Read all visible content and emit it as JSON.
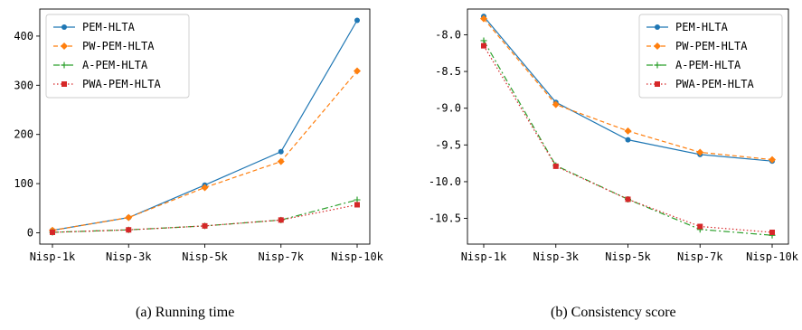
{
  "chart_data": [
    {
      "type": "line",
      "title": "",
      "caption": "(a) Running time",
      "xlabel": "",
      "ylabel": "",
      "categories": [
        "Nisp-1k",
        "Nisp-3k",
        "Nisp-5k",
        "Nisp-7k",
        "Nisp-10k"
      ],
      "ylim": [
        -23,
        455
      ],
      "yticks": [
        0,
        100,
        200,
        300,
        400
      ],
      "legend_position": "top-left",
      "grid": false,
      "series": [
        {
          "name": "PEM-HLTA",
          "color": "#1f77b4",
          "marker": "circle",
          "dash": "solid",
          "values": [
            5,
            31,
            97,
            165,
            432
          ]
        },
        {
          "name": "PW-PEM-HLTA",
          "color": "#ff7f0e",
          "marker": "diamond",
          "dash": "dashed",
          "values": [
            5,
            31,
            92,
            145,
            329
          ]
        },
        {
          "name": "A-PEM-HLTA",
          "color": "#2ca02c",
          "marker": "plus",
          "dash": "dashdot",
          "values": [
            1,
            6,
            14,
            26,
            67
          ]
        },
        {
          "name": "PWA-PEM-HLTA",
          "color": "#d62728",
          "marker": "square",
          "dash": "dotted",
          "values": [
            1,
            6,
            14,
            26,
            57
          ]
        }
      ]
    },
    {
      "type": "line",
      "title": "",
      "caption": "(b) Consistency score",
      "xlabel": "",
      "ylabel": "",
      "categories": [
        "Nisp-1k",
        "Nisp-3k",
        "Nisp-5k",
        "Nisp-7k",
        "Nisp-10k"
      ],
      "ylim": [
        -10.85,
        -7.65
      ],
      "yticks": [
        -8.0,
        -8.5,
        -9.0,
        -9.5,
        -10.0,
        -10.5
      ],
      "ytick_labels": [
        "-8.0",
        "-8.5",
        "-9.0",
        "-9.5",
        "-10.0",
        "-10.5"
      ],
      "legend_position": "top-right",
      "grid": false,
      "series": [
        {
          "name": "PEM-HLTA",
          "color": "#1f77b4",
          "marker": "circle",
          "dash": "solid",
          "values": [
            -7.75,
            -8.92,
            -9.43,
            -9.63,
            -9.72
          ]
        },
        {
          "name": "PW-PEM-HLTA",
          "color": "#ff7f0e",
          "marker": "diamond",
          "dash": "dashed",
          "values": [
            -7.78,
            -8.95,
            -9.31,
            -9.6,
            -9.7
          ]
        },
        {
          "name": "A-PEM-HLTA",
          "color": "#2ca02c",
          "marker": "plus",
          "dash": "dashdot",
          "values": [
            -8.08,
            -9.78,
            -10.24,
            -10.65,
            -10.73
          ]
        },
        {
          "name": "PWA-PEM-HLTA",
          "color": "#d62728",
          "marker": "square",
          "dash": "dotted",
          "values": [
            -8.15,
            -9.79,
            -10.24,
            -10.61,
            -10.69
          ]
        }
      ]
    }
  ]
}
